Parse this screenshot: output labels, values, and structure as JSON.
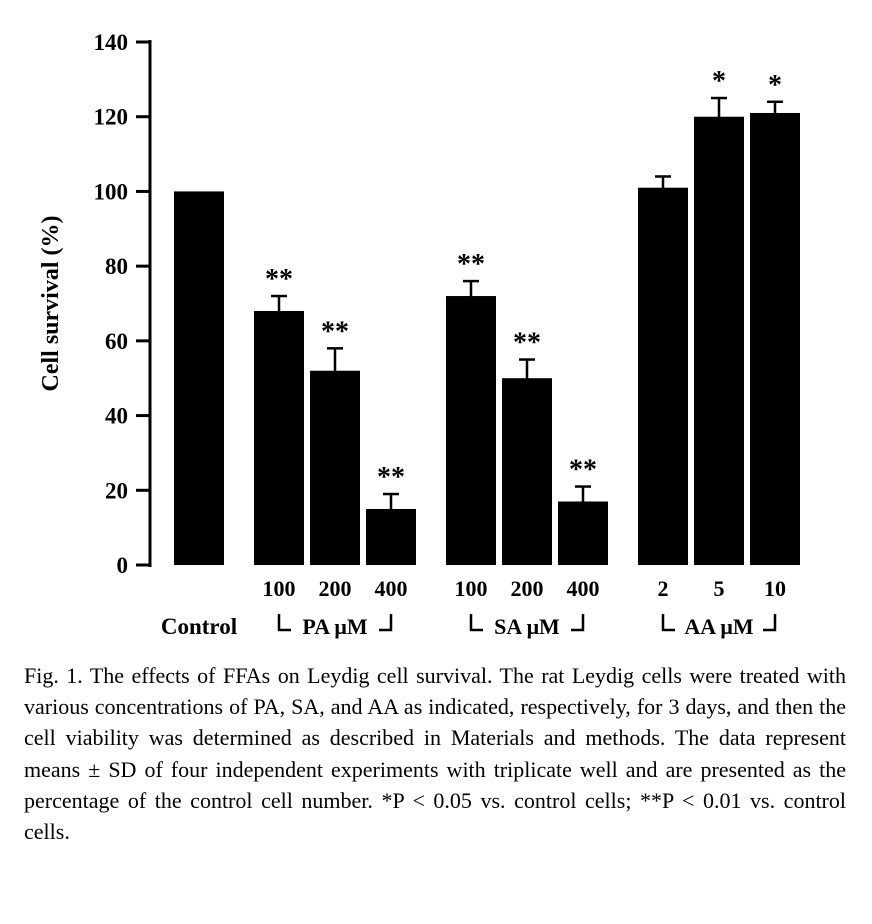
{
  "figure": {
    "caption": "Fig. 1. The effects of FFAs on Leydig cell survival. The rat Leydig cells were treated with various concentrations of PA, SA, and AA as indicated, respectively, for 3 days, and then the cell viability was determined as described in Materials and methods. The data represent means ± SD of four independent experiments with triplicate well and are presented as the percentage of the control cell number. *P < 0.05 vs. control cells; **P < 0.01 vs. control cells."
  },
  "chart_data": {
    "type": "bar",
    "title": "",
    "xlabel": "",
    "ylabel": "Cell survival (%)",
    "ylim": [
      0,
      140
    ],
    "yticks": [
      0,
      20,
      40,
      60,
      80,
      100,
      120,
      140
    ],
    "bar_color": "#000000",
    "grid": false,
    "error_bars": "SD, upper cap shown",
    "significance_legend": {
      "*": "P < 0.05 vs. control cells",
      "**": "P < 0.01 vs. control cells"
    },
    "groups": [
      {
        "label": "Control",
        "bracket": false,
        "bars": [
          {
            "x_label": "",
            "value": 100,
            "error": 0,
            "sig": ""
          }
        ]
      },
      {
        "label": "PA μM",
        "bracket": true,
        "bars": [
          {
            "x_label": "100",
            "value": 68,
            "error": 4,
            "sig": "**"
          },
          {
            "x_label": "200",
            "value": 52,
            "error": 6,
            "sig": "**"
          },
          {
            "x_label": "400",
            "value": 15,
            "error": 4,
            "sig": "**"
          }
        ]
      },
      {
        "label": "SA μM",
        "bracket": true,
        "bars": [
          {
            "x_label": "100",
            "value": 72,
            "error": 4,
            "sig": "**"
          },
          {
            "x_label": "200",
            "value": 50,
            "error": 5,
            "sig": "**"
          },
          {
            "x_label": "400",
            "value": 17,
            "error": 4,
            "sig": "**"
          }
        ]
      },
      {
        "label": "AA μM",
        "bracket": true,
        "bars": [
          {
            "x_label": "2",
            "value": 101,
            "error": 3,
            "sig": ""
          },
          {
            "x_label": "5",
            "value": 120,
            "error": 5,
            "sig": "*"
          },
          {
            "x_label": "10",
            "value": 121,
            "error": 3,
            "sig": "*"
          }
        ]
      }
    ]
  }
}
